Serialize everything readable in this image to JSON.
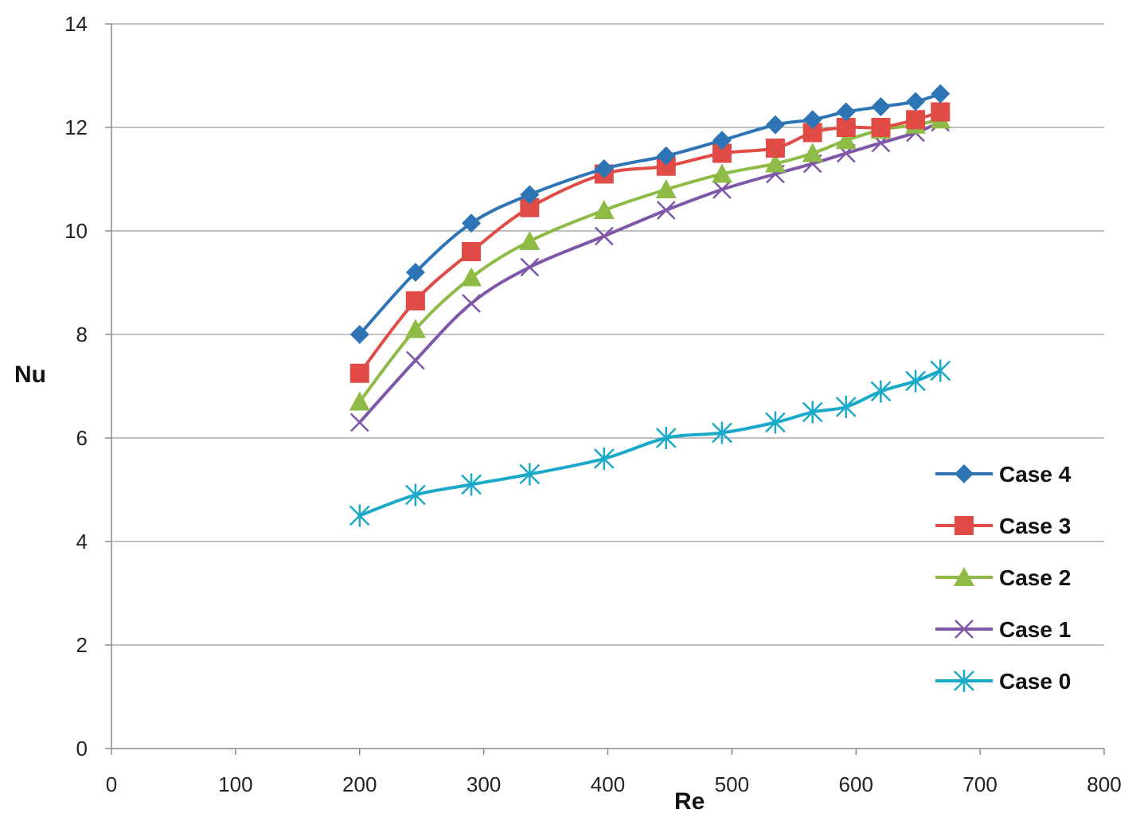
{
  "chart_data": {
    "type": "line",
    "title": "",
    "xlabel": "Re",
    "ylabel": "Nu",
    "xlim": [
      0,
      800
    ],
    "ylim": [
      0,
      14
    ],
    "xticks": [
      0,
      100,
      200,
      300,
      400,
      500,
      600,
      700,
      800
    ],
    "yticks": [
      0,
      2,
      4,
      6,
      8,
      10,
      12,
      14
    ],
    "xtick_labels": [
      "0",
      "100",
      "200",
      "300",
      "400",
      "500",
      "600",
      "700",
      "800"
    ],
    "ytick_labels": [
      "0",
      "2",
      "4",
      "6",
      "8",
      "10",
      "12",
      "14"
    ],
    "grid": "horizontal",
    "legend_position": "right",
    "x": [
      200,
      245,
      290,
      337,
      397,
      447,
      492,
      535,
      565,
      592,
      620,
      648,
      668
    ],
    "series": [
      {
        "name": "Case 4",
        "color": "#2E75B6",
        "marker": "diamond",
        "values": [
          8.0,
          9.2,
          10.15,
          10.7,
          11.2,
          11.45,
          11.75,
          12.05,
          12.15,
          12.3,
          12.4,
          12.5,
          12.65
        ]
      },
      {
        "name": "Case 3",
        "color": "#E04B46",
        "marker": "square",
        "values": [
          7.25,
          8.65,
          9.6,
          10.45,
          11.1,
          11.25,
          11.5,
          11.6,
          11.9,
          12.0,
          12.0,
          12.15,
          12.3
        ]
      },
      {
        "name": "Case 2",
        "color": "#8DBB45",
        "marker": "triangle",
        "values": [
          6.7,
          8.1,
          9.1,
          9.8,
          10.4,
          10.8,
          11.1,
          11.3,
          11.5,
          11.75,
          11.95,
          12.05,
          12.15
        ]
      },
      {
        "name": "Case 1",
        "color": "#7E57A8",
        "marker": "x",
        "values": [
          6.3,
          7.5,
          8.6,
          9.3,
          9.9,
          10.4,
          10.8,
          11.1,
          11.3,
          11.5,
          11.7,
          11.9,
          12.1
        ]
      },
      {
        "name": "Case 0",
        "color": "#1BA9C9",
        "marker": "asterisk",
        "values": [
          4.5,
          4.9,
          5.1,
          5.3,
          5.6,
          6.0,
          6.1,
          6.3,
          6.5,
          6.6,
          6.9,
          7.1,
          7.3
        ]
      }
    ]
  }
}
